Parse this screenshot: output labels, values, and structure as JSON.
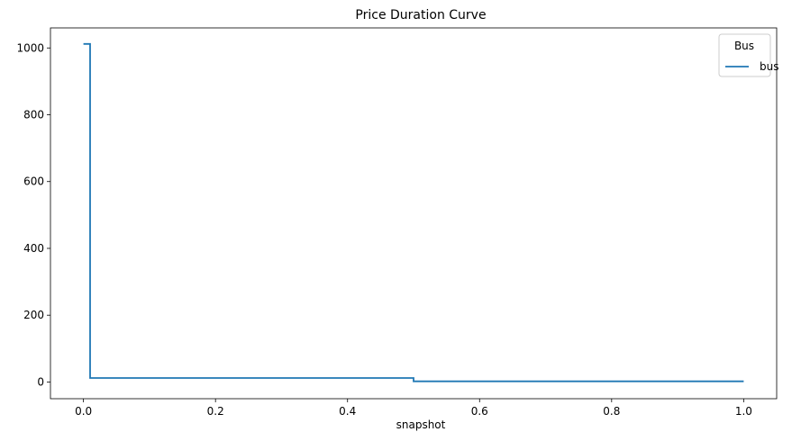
{
  "chart_data": {
    "type": "line",
    "title": "Price Duration Curve",
    "xlabel": "snapshot",
    "ylabel": "",
    "xlim": [
      -0.05,
      1.05
    ],
    "ylim": [
      -50,
      1060
    ],
    "xticks": [
      0.0,
      0.2,
      0.4,
      0.6,
      0.8,
      1.0
    ],
    "xtick_labels": [
      "0.0",
      "0.2",
      "0.4",
      "0.6",
      "0.8",
      "1.0"
    ],
    "yticks": [
      0,
      200,
      400,
      600,
      800,
      1000
    ],
    "ytick_labels": [
      "0",
      "200",
      "400",
      "600",
      "800",
      "1000"
    ],
    "grid": false,
    "legend": {
      "title": "Bus",
      "placement": "top-right"
    },
    "series": [
      {
        "name": "bus",
        "color": "#1f77b4",
        "step": true,
        "x": [
          0.0,
          0.01,
          0.01,
          0.5,
          0.5,
          1.0
        ],
        "y": [
          1012,
          1012,
          12,
          12,
          2,
          2
        ]
      }
    ]
  }
}
